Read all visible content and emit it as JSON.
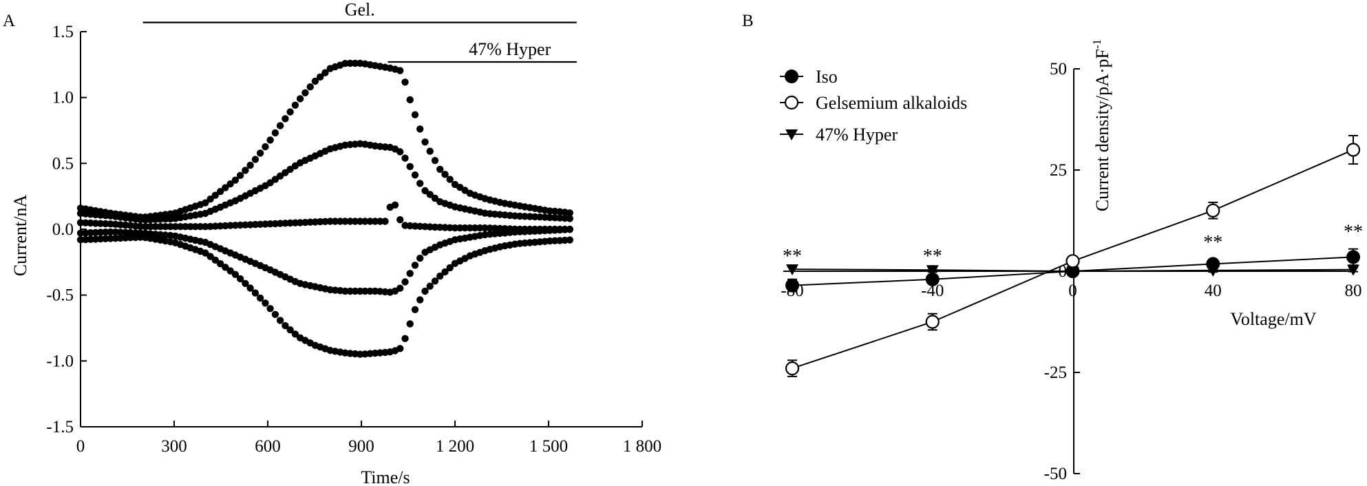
{
  "chart_data": [
    {
      "panel": "A",
      "type": "scatter",
      "xlabel": "Time/s",
      "ylabel": "Current/nA",
      "xlim": [
        0,
        1800
      ],
      "ylim": [
        -1.5,
        1.5
      ],
      "xticks": [
        {
          "value": 0,
          "label": "0"
        },
        {
          "value": 300,
          "label": "300"
        },
        {
          "value": 600,
          "label": "600"
        },
        {
          "value": 900,
          "label": "900"
        },
        {
          "value": 1200,
          "label": "1 200"
        },
        {
          "value": 1500,
          "label": "1 500"
        },
        {
          "value": 1800,
          "label": "1 800"
        }
      ],
      "yticks": [
        {
          "value": 1.5,
          "label": "1.5"
        },
        {
          "value": 1.0,
          "label": "1.0"
        },
        {
          "value": 0.5,
          "label": "0.5"
        },
        {
          "value": 0.0,
          "label": "0.0"
        },
        {
          "value": -0.5,
          "label": "-0.5"
        },
        {
          "value": -1.0,
          "label": "-1.0"
        },
        {
          "value": -1.5,
          "label": "-1.5"
        }
      ],
      "annotations": [
        {
          "label": "Gel.",
          "x_start": 200,
          "x_end": 1590,
          "y": 1.57
        },
        {
          "label": "47% Hyper",
          "x_start": 985,
          "x_end": 1590,
          "y": 1.27
        }
      ],
      "series": [
        {
          "values": [
            [
              0,
              0.16
            ],
            [
              100,
              0.12
            ],
            [
              200,
              0.09
            ],
            [
              300,
              0.12
            ],
            [
              400,
              0.2
            ],
            [
              500,
              0.38
            ],
            [
              550,
              0.5
            ],
            [
              600,
              0.65
            ],
            [
              650,
              0.82
            ],
            [
              700,
              0.98
            ],
            [
              750,
              1.12
            ],
            [
              800,
              1.22
            ],
            [
              850,
              1.26
            ],
            [
              900,
              1.26
            ],
            [
              950,
              1.24
            ],
            [
              1000,
              1.22
            ],
            [
              1030,
              1.2
            ],
            [
              1060,
              0.95
            ],
            [
              1100,
              0.68
            ],
            [
              1150,
              0.46
            ],
            [
              1200,
              0.34
            ],
            [
              1250,
              0.27
            ],
            [
              1300,
              0.23
            ],
            [
              1350,
              0.2
            ],
            [
              1400,
              0.18
            ],
            [
              1450,
              0.16
            ],
            [
              1500,
              0.14
            ],
            [
              1550,
              0.13
            ],
            [
              1580,
              0.12
            ]
          ]
        },
        {
          "values": [
            [
              0,
              0.12
            ],
            [
              100,
              0.1
            ],
            [
              200,
              0.07
            ],
            [
              300,
              0.08
            ],
            [
              400,
              0.12
            ],
            [
              500,
              0.22
            ],
            [
              600,
              0.34
            ],
            [
              700,
              0.5
            ],
            [
              800,
              0.61
            ],
            [
              850,
              0.64
            ],
            [
              900,
              0.65
            ],
            [
              950,
              0.63
            ],
            [
              1000,
              0.62
            ],
            [
              1030,
              0.58
            ],
            [
              1070,
              0.42
            ],
            [
              1100,
              0.3
            ],
            [
              1150,
              0.21
            ],
            [
              1200,
              0.17
            ],
            [
              1300,
              0.12
            ],
            [
              1400,
              0.1
            ],
            [
              1500,
              0.09
            ],
            [
              1580,
              0.08
            ]
          ]
        },
        {
          "values": [
            [
              0,
              0.05
            ],
            [
              100,
              0.04
            ],
            [
              200,
              0.02
            ],
            [
              300,
              0.02
            ],
            [
              400,
              0.02
            ],
            [
              500,
              0.03
            ],
            [
              600,
              0.04
            ],
            [
              700,
              0.05
            ],
            [
              800,
              0.06
            ],
            [
              900,
              0.06
            ],
            [
              980,
              0.06
            ],
            [
              1000,
              0.24
            ],
            [
              1030,
              0.03
            ],
            [
              1100,
              0.02
            ],
            [
              1200,
              0.01
            ],
            [
              1300,
              0.01
            ],
            [
              1400,
              0.0
            ],
            [
              1500,
              0.0
            ],
            [
              1580,
              0.0
            ]
          ]
        },
        {
          "values": [
            [
              0,
              -0.03
            ],
            [
              100,
              -0.02
            ],
            [
              200,
              -0.03
            ],
            [
              300,
              -0.05
            ],
            [
              400,
              -0.1
            ],
            [
              500,
              -0.2
            ],
            [
              600,
              -0.3
            ],
            [
              700,
              -0.41
            ],
            [
              800,
              -0.46
            ],
            [
              850,
              -0.47
            ],
            [
              900,
              -0.47
            ],
            [
              950,
              -0.47
            ],
            [
              1000,
              -0.48
            ],
            [
              1030,
              -0.44
            ],
            [
              1070,
              -0.28
            ],
            [
              1100,
              -0.18
            ],
            [
              1150,
              -0.12
            ],
            [
              1200,
              -0.08
            ],
            [
              1300,
              -0.04
            ],
            [
              1400,
              -0.02
            ],
            [
              1500,
              -0.01
            ],
            [
              1580,
              0.0
            ]
          ]
        },
        {
          "values": [
            [
              0,
              -0.08
            ],
            [
              100,
              -0.07
            ],
            [
              200,
              -0.06
            ],
            [
              300,
              -0.1
            ],
            [
              400,
              -0.18
            ],
            [
              500,
              -0.35
            ],
            [
              550,
              -0.46
            ],
            [
              600,
              -0.58
            ],
            [
              650,
              -0.72
            ],
            [
              700,
              -0.82
            ],
            [
              750,
              -0.88
            ],
            [
              800,
              -0.92
            ],
            [
              850,
              -0.94
            ],
            [
              900,
              -0.95
            ],
            [
              950,
              -0.94
            ],
            [
              1000,
              -0.93
            ],
            [
              1030,
              -0.9
            ],
            [
              1050,
              -0.76
            ],
            [
              1070,
              -0.62
            ],
            [
              1100,
              -0.48
            ],
            [
              1150,
              -0.36
            ],
            [
              1200,
              -0.26
            ],
            [
              1250,
              -0.2
            ],
            [
              1300,
              -0.16
            ],
            [
              1350,
              -0.13
            ],
            [
              1400,
              -0.11
            ],
            [
              1450,
              -0.1
            ],
            [
              1500,
              -0.09
            ],
            [
              1580,
              -0.08
            ]
          ]
        }
      ]
    },
    {
      "panel": "B",
      "type": "line",
      "xlabel": "Voltage/mV",
      "ylabel": "Current density/pA·pF⁻¹",
      "ylabel_main": "Current density/pA·pF",
      "ylabel_sup": "-1",
      "xlim": [
        -80,
        80
      ],
      "ylim": [
        -50,
        50
      ],
      "xticks": [
        {
          "value": -80,
          "label": "-80"
        },
        {
          "value": -40,
          "label": "-40"
        },
        {
          "value": 0,
          "label": "0"
        },
        {
          "value": 40,
          "label": "40"
        },
        {
          "value": 80,
          "label": "80"
        }
      ],
      "yticks": [
        {
          "value": 50,
          "label": "50"
        },
        {
          "value": 25,
          "label": "25"
        },
        {
          "value": 0,
          "label": "0"
        },
        {
          "value": -25,
          "label": "-25"
        },
        {
          "value": -50,
          "label": "-50"
        }
      ],
      "legend_position": "top-left",
      "x": [
        -80,
        -40,
        0,
        40,
        80
      ],
      "series": [
        {
          "name": "Iso",
          "marker": "filled-circle",
          "values": [
            -3.5,
            -2,
            0,
            1.8,
            3.5
          ],
          "errors": [
            1.5,
            1,
            0.5,
            1,
            2
          ]
        },
        {
          "name": "Gelsemium alkaloids",
          "marker": "open-circle",
          "values": [
            -24,
            -12.5,
            2.5,
            15,
            30
          ],
          "errors": [
            2,
            2,
            1,
            2,
            3.5
          ]
        },
        {
          "name": "47% Hyper",
          "marker": "filled-triangle-down",
          "values": [
            0.5,
            0.3,
            0,
            0.2,
            0.4
          ],
          "errors": [
            0.5,
            0.5,
            0.3,
            0.4,
            0.5
          ]
        }
      ],
      "significance": [
        {
          "x": -80,
          "label": "**"
        },
        {
          "x": -40,
          "label": "**"
        },
        {
          "x": 40,
          "label": "**"
        },
        {
          "x": 80,
          "label": "**"
        }
      ]
    }
  ]
}
